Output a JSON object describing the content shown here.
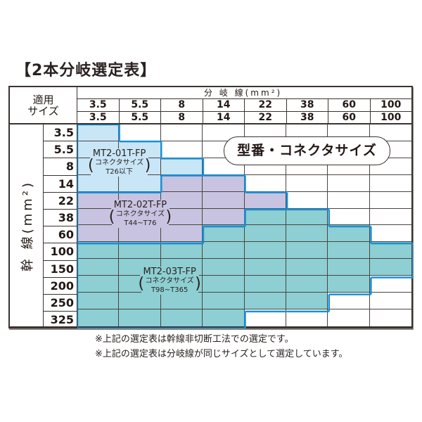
{
  "title": "【2本分岐選定表】",
  "header": {
    "corner_line1": "適用",
    "corner_line2": "サイズ",
    "branch_label": "分 岐 線(mm²)",
    "branch_sizes_row1": [
      "3.5",
      "5.5",
      "8",
      "14",
      "22",
      "38",
      "60",
      "100"
    ],
    "branch_sizes_row2": [
      "3.5",
      "5.5",
      "8",
      "14",
      "22",
      "38",
      "60",
      "100"
    ]
  },
  "trunk_label": "幹 線(mm²)",
  "trunk_sizes": [
    "3.5",
    "5.5",
    "8",
    "14",
    "22",
    "38",
    "60",
    "100",
    "150",
    "200",
    "250",
    "325"
  ],
  "legend_pill": "型番・コネクタサイズ",
  "groups": [
    {
      "id": "A",
      "model": "MT2-01T-FP",
      "connector_label": "コネクタサイズ",
      "connector_range": "T26以下",
      "color": "#c9e6f7"
    },
    {
      "id": "B",
      "model": "MT2-02T-FP",
      "connector_label": "コネクタサイズ",
      "connector_range": "T44~T76",
      "color": "#c7c3e0"
    },
    {
      "id": "C",
      "model": "MT2-03T-FP",
      "connector_label": "コネクタサイズ",
      "connector_range": "T98~T365",
      "color": "#8dcfd3"
    }
  ],
  "outline_color": "#1a8fd6",
  "selection_matrix": [
    [
      "A",
      "",
      "",
      "",
      "",
      "",
      "",
      ""
    ],
    [
      "A",
      "A",
      "",
      "",
      "",
      "",
      "",
      ""
    ],
    [
      "A",
      "A",
      "A",
      "",
      "",
      "",
      "",
      ""
    ],
    [
      "A",
      "A",
      "B",
      "B",
      "",
      "",
      "",
      ""
    ],
    [
      "B",
      "B",
      "B",
      "B",
      "B",
      "",
      "",
      ""
    ],
    [
      "B",
      "B",
      "B",
      "B",
      "C",
      "C",
      "",
      ""
    ],
    [
      "B",
      "B",
      "B",
      "C",
      "C",
      "C",
      "C",
      ""
    ],
    [
      "C",
      "C",
      "C",
      "C",
      "C",
      "C",
      "C",
      "C"
    ],
    [
      "C",
      "C",
      "C",
      "C",
      "C",
      "C",
      "C",
      "C"
    ],
    [
      "C",
      "C",
      "C",
      "C",
      "C",
      "C",
      "C",
      ""
    ],
    [
      "C",
      "C",
      "C",
      "C",
      "C",
      "C",
      "",
      ""
    ],
    [
      "C",
      "C",
      "C",
      "C",
      "",
      "",
      "",
      ""
    ]
  ],
  "notes": [
    "※上記の選定表は幹線非切断工法での選定です。",
    "※上記の選定表は分岐線が同じサイズとして選定しています。"
  ]
}
